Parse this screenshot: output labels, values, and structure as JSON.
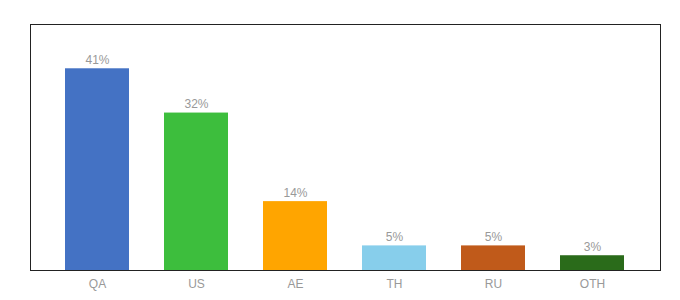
{
  "chart_data": {
    "type": "bar",
    "categories": [
      "QA",
      "US",
      "AE",
      "TH",
      "RU",
      "OTH"
    ],
    "values": [
      41,
      32,
      14,
      5,
      5,
      3
    ],
    "value_labels": [
      "41%",
      "32%",
      "14%",
      "5%",
      "5%",
      "3%"
    ],
    "colors": [
      "#4472C4",
      "#3DBE3D",
      "#FFA500",
      "#87CEEB",
      "#C05A1A",
      "#2A6B1A"
    ],
    "ylim": [
      0,
      50
    ],
    "data_labels": true,
    "tick_labels": "x",
    "grid": false
  }
}
